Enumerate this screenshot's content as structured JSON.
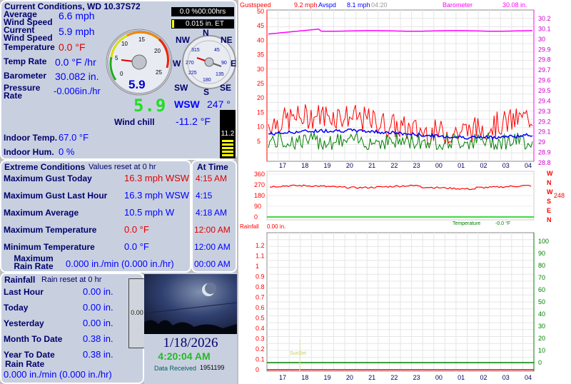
{
  "current": {
    "title": "Current Conditions, WD 10.37S72",
    "avg_wind_label": "Average Wind Speed",
    "avg_wind_value": "6.6 mph",
    "cur_wind_label": "Current Wind Speed",
    "cur_wind_value": "5.9 mph",
    "temp_label": "Temperature",
    "temp_value": "0.0 °F",
    "temp_rate_label": "Temp Rate",
    "temp_rate_value": "0.0 °F /hr",
    "baro_label": "Barometer",
    "baro_value": "30.082 in.",
    "pressure_rate_label": "Pressure Rate",
    "pressure_rate_value": "-0.006in./hr",
    "gauge_speed": "5.9",
    "gauge_digital": "5.9",
    "gauge_ticks": [
      "0",
      "5",
      "10",
      "15",
      "20",
      "25"
    ],
    "compass_labels": {
      "n": "N",
      "ne": "NE",
      "e": "E",
      "se": "SE",
      "s": "S",
      "sw": "SW",
      "w": "W",
      "nw": "NW"
    },
    "compass_degrees": [
      "45",
      "90",
      "135",
      "180",
      "225",
      "270",
      "315"
    ],
    "wind_dir": "WSW",
    "wind_deg": "247 °",
    "windchill_label": "Wind chill",
    "windchill_value": "-11.2 °F",
    "indoor_temp_label": "Indoor Temp.",
    "indoor_temp_value": "67.0 °F",
    "indoor_hum_label": "Indoor Hum.",
    "indoor_hum_value": "0 %",
    "rate_box": "0.0 %00:00hrs",
    "et_box": "0.015 in. ET",
    "thermo_value": "11.2"
  },
  "extreme": {
    "title": "Extreme Conditions",
    "subtitle": "Values reset at 0 hr",
    "time_header": "At Time",
    "rows": [
      {
        "label": "Maximum Gust Today",
        "value": "16.3 mph WSW",
        "time": "4:15 AM"
      },
      {
        "label": "Maximum Gust Last Hour",
        "value": "16.3 mph WSW",
        "time": "4:15"
      },
      {
        "label": "Maximum Average",
        "value": "10.5 mph   W",
        "time": "4:18 AM"
      },
      {
        "label": "Maximum Temperature",
        "value": "0.0 °F",
        "time": "12:00 AM"
      },
      {
        "label": "Minimum Temperature",
        "value": "0.0 °F",
        "time": "12:00 AM"
      },
      {
        "label": "Maximum Rain Rate",
        "value": "0.000 in./min (0.000 in./hr)",
        "time": "00:00 AM"
      }
    ]
  },
  "rainfall": {
    "title": "Rainfall",
    "subtitle": "Rain reset at 0 hr",
    "rows": [
      {
        "label": "Last Hour",
        "value": "0.00 in."
      },
      {
        "label": "Today",
        "value": "0.00 in."
      },
      {
        "label": "Yesterday",
        "value": "0.00 in."
      },
      {
        "label": "Month To Date",
        "value": "0.38 in."
      },
      {
        "label": "Year To Date",
        "value": "0.38 in."
      }
    ],
    "rate_label": "Rain Rate",
    "rate_value": "0.000 in./min (0.000 in./hr)",
    "gauge_value": "0.00"
  },
  "cam": {
    "date": "1/18/2026",
    "time": "4:20:04 AM",
    "received_label": "Data Received",
    "received_value": "1951199"
  },
  "graph": {
    "gust_label": "Gustspeed",
    "gust_value": "9.2 mph",
    "avg_label": "Avspd",
    "avg_value": "8.1 mph",
    "time_label": "04:20",
    "baro_label": "Barometer",
    "baro_value": "30.08 in.",
    "dir_value": "248",
    "dir_letters": [
      "W",
      "N",
      "W",
      "S",
      "E",
      "N"
    ],
    "rain_label": "Rainfall",
    "rain_value": "0.00 in.",
    "temp_label": "Temperature",
    "temp_value": "-0.0 °F",
    "sunset_label": "SunSet",
    "hours": [
      "17",
      "18",
      "19",
      "20",
      "21",
      "22",
      "23",
      "00",
      "01",
      "02",
      "03",
      "04"
    ],
    "wind_ticks": [
      "50",
      "45",
      "40",
      "35",
      "30",
      "25",
      "20",
      "15",
      "10",
      "5"
    ],
    "baro_ticks": [
      "30.2",
      "30.1",
      "30",
      "29.9",
      "29.8",
      "29.7",
      "29.6",
      "29.5",
      "29.4",
      "29.3",
      "29.2",
      "29.1",
      "29",
      "28.9",
      "28.8"
    ],
    "dir_ticks": [
      "360",
      "270",
      "180",
      "90",
      "0"
    ],
    "rain_ticks": [
      "1.2",
      "1.1",
      "1",
      "0.9",
      "0.8",
      "0.7",
      "0.6",
      "0.5",
      "0.4",
      "0.3",
      "0.2",
      "0.1",
      "0"
    ],
    "temp_ticks": [
      "100",
      "90",
      "80",
      "70",
      "60",
      "50",
      "40",
      "30",
      "20",
      "10",
      "0"
    ]
  },
  "colors": {
    "panel": "#c8d0e0",
    "navy": "#00006b",
    "red": "#e00000",
    "blue": "#0000ff",
    "gust": "#ff0000",
    "avg": "#0000ff",
    "min": "#008000",
    "baro": "#ff00ff"
  }
}
